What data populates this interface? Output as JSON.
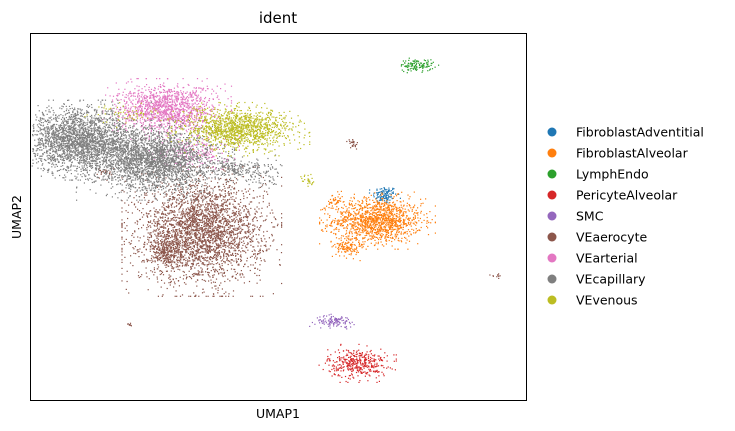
{
  "chart_data": {
    "type": "scatter",
    "title": "ident",
    "xlabel": "UMAP1",
    "ylabel": "UMAP2",
    "xlim": [
      0,
      10
    ],
    "ylim": [
      0,
      10
    ],
    "grid": false,
    "ticks": false,
    "legend_placement": "right",
    "series": [
      {
        "name": "FibroblastAdventitial",
        "color": "#1f77b4",
        "clusters": [
          {
            "cx": 7.15,
            "cy": 5.6,
            "sx": 0.12,
            "sy": 0.12,
            "n": 120
          }
        ]
      },
      {
        "name": "FibroblastAlveolar",
        "color": "#ff7f0e",
        "clusters": [
          {
            "cx": 7.0,
            "cy": 4.9,
            "sx": 0.45,
            "sy": 0.3,
            "n": 1300
          },
          {
            "cx": 6.4,
            "cy": 4.2,
            "sx": 0.12,
            "sy": 0.15,
            "n": 120
          },
          {
            "cx": 6.15,
            "cy": 5.4,
            "sx": 0.08,
            "sy": 0.12,
            "n": 40
          }
        ]
      },
      {
        "name": "LymphEndo",
        "color": "#2ca02c",
        "clusters": [
          {
            "cx": 7.8,
            "cy": 9.15,
            "sx": 0.17,
            "sy": 0.08,
            "n": 120
          }
        ]
      },
      {
        "name": "PericyteAlveolar",
        "color": "#d62728",
        "clusters": [
          {
            "cx": 6.6,
            "cy": 1.0,
            "sx": 0.3,
            "sy": 0.2,
            "n": 400
          }
        ]
      },
      {
        "name": "SMC",
        "color": "#9467bd",
        "clusters": [
          {
            "cx": 6.15,
            "cy": 2.15,
            "sx": 0.2,
            "sy": 0.08,
            "n": 110
          }
        ]
      },
      {
        "name": "VEaerocyte",
        "color": "#8c564b",
        "clusters": [
          {
            "cx": 3.45,
            "cy": 4.6,
            "sx": 0.62,
            "sy": 0.68,
            "n": 3000
          },
          {
            "cx": 2.7,
            "cy": 4.05,
            "sx": 0.2,
            "sy": 0.18,
            "n": 250
          },
          {
            "cx": 1.5,
            "cy": 6.2,
            "sx": 0.1,
            "sy": 0.1,
            "n": 25
          },
          {
            "cx": 6.5,
            "cy": 7.0,
            "sx": 0.05,
            "sy": 0.08,
            "n": 25
          },
          {
            "cx": 9.4,
            "cy": 3.4,
            "sx": 0.05,
            "sy": 0.03,
            "n": 10
          },
          {
            "cx": 2.0,
            "cy": 2.05,
            "sx": 0.04,
            "sy": 0.03,
            "n": 8
          }
        ]
      },
      {
        "name": "VEarterial",
        "color": "#e377c2",
        "clusters": [
          {
            "cx": 2.75,
            "cy": 7.95,
            "sx": 0.5,
            "sy": 0.32,
            "n": 1300
          },
          {
            "cx": 3.3,
            "cy": 6.8,
            "sx": 0.35,
            "sy": 0.22,
            "n": 200
          }
        ]
      },
      {
        "name": "VEcapillary",
        "color": "#7f7f7f",
        "clusters": [
          {
            "cx": 1.0,
            "cy": 7.1,
            "sx": 0.55,
            "sy": 0.42,
            "n": 2400
          },
          {
            "cx": 2.5,
            "cy": 6.55,
            "sx": 0.62,
            "sy": 0.42,
            "n": 2600
          },
          {
            "cx": 4.2,
            "cy": 6.3,
            "sx": 0.35,
            "sy": 0.15,
            "n": 200
          },
          {
            "cx": 4.7,
            "cy": 6.0,
            "sx": 0.2,
            "sy": 0.1,
            "n": 40
          }
        ]
      },
      {
        "name": "VEvenous",
        "color": "#bcbd22",
        "clusters": [
          {
            "cx": 4.2,
            "cy": 7.4,
            "sx": 0.55,
            "sy": 0.28,
            "n": 1300
          },
          {
            "cx": 2.0,
            "cy": 7.8,
            "sx": 0.35,
            "sy": 0.15,
            "n": 60
          },
          {
            "cx": 5.6,
            "cy": 6.0,
            "sx": 0.08,
            "sy": 0.1,
            "n": 25
          }
        ]
      }
    ]
  }
}
